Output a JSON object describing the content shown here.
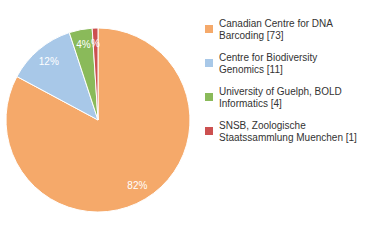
{
  "chart_data": {
    "type": "pie",
    "categories": [
      "Canadian Centre for DNA\nBarcoding [73]",
      "Centre for Biodiversity\nGenomics [11]",
      "University of Guelph, BOLD\nInformatics [4]",
      "SNSB, Zoologische\nStaatssammlung Muenchen [1]"
    ],
    "values": [
      82,
      12,
      4,
      1
    ],
    "value_labels": [
      "82%",
      "12%",
      "4%",
      "%"
    ],
    "colors": [
      "#f5a96a",
      "#a8c8e8",
      "#8aba5a",
      "#cc5050"
    ],
    "legend": "right"
  }
}
